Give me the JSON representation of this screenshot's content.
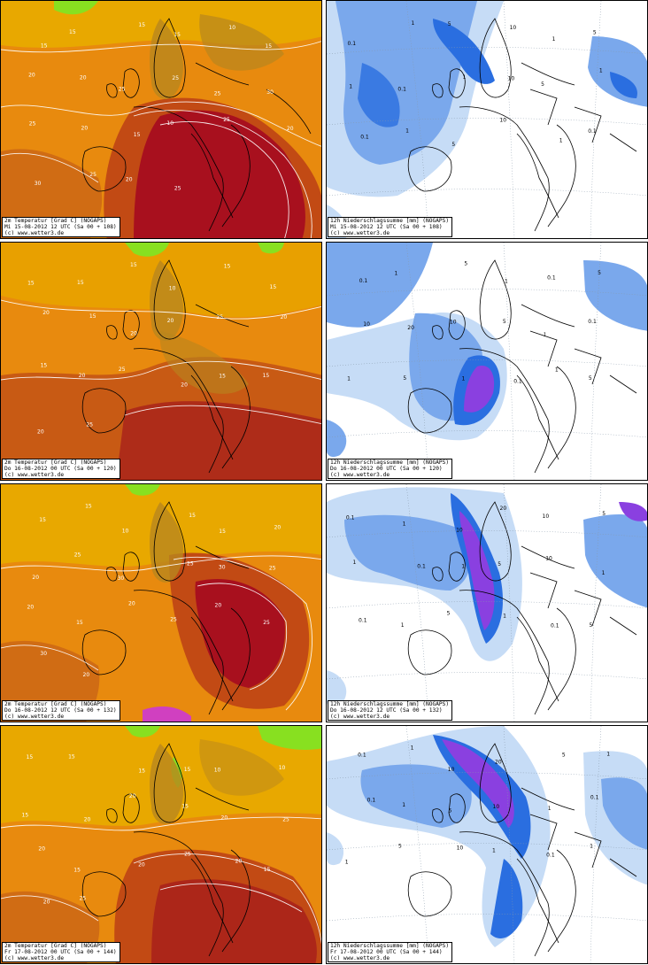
{
  "panels": [
    {
      "row": 0,
      "col": 0,
      "type": "temperature",
      "caption": [
        "2m Temperatur [Grad C] (NOGAPS)",
        "Mi 15-08-2012 12  UTC (Sa 00 + 108)",
        "(c) www.wetter3.de"
      ],
      "contour_labels": [
        "15",
        "15",
        "15",
        "15",
        "10",
        "15",
        "20",
        "20",
        "25",
        "25",
        "25",
        "30",
        "25",
        "20",
        "15",
        "10",
        "25",
        "20",
        "30",
        "25",
        "20",
        "25"
      ]
    },
    {
      "row": 0,
      "col": 1,
      "type": "precipitation",
      "caption": [
        "12h Niederschlagssumme [mm] (NOGAPS)",
        "Mi 15-08-2012 12  UTC (Sa 00 + 108)",
        "(c) www.wetter3.de"
      ],
      "contour_labels": [
        "0.1",
        "1",
        "5",
        "10",
        "1",
        "5",
        "1",
        "0.1",
        "1",
        "10",
        "5",
        "1",
        "0.1",
        "1",
        "5",
        "10",
        "1",
        "0.1"
      ]
    },
    {
      "row": 1,
      "col": 0,
      "type": "temperature",
      "caption": [
        "2m Temperatur [Grad C] (NOGAPS)",
        "Do 16-08-2012 00  UTC (Sa 00 + 120)",
        "(c) www.wetter3.de"
      ],
      "contour_labels": [
        "15",
        "15",
        "15",
        "10",
        "15",
        "15",
        "20",
        "15",
        "20",
        "20",
        "25",
        "20",
        "15",
        "20",
        "25",
        "20",
        "15",
        "15",
        "20",
        "25"
      ]
    },
    {
      "row": 1,
      "col": 1,
      "type": "precipitation",
      "caption": [
        "12h Niederschlagssumme [mm] (NOGAPS)",
        "Do 16-08-2012 00  UTC (Sa 00 + 120)",
        "(c) www.wetter3.de"
      ],
      "contour_labels": [
        "0.1",
        "1",
        "5",
        "1",
        "0.1",
        "5",
        "10",
        "20",
        "10",
        "5",
        "1",
        "0.1",
        "1",
        "5",
        "1",
        "0.1",
        "1",
        "5"
      ]
    },
    {
      "row": 2,
      "col": 0,
      "type": "temperature",
      "caption": [
        "2m Temperatur [Grad C] (NOGAPS)",
        "Do 16-08-2012 12  UTC (Sa 00 + 132)",
        "(c) www.wetter3.de"
      ],
      "contour_labels": [
        "15",
        "15",
        "10",
        "15",
        "15",
        "20",
        "20",
        "25",
        "30",
        "25",
        "30",
        "25",
        "20",
        "15",
        "20",
        "25",
        "20",
        "25",
        "30",
        "20"
      ]
    },
    {
      "row": 2,
      "col": 1,
      "type": "precipitation",
      "caption": [
        "12h Niederschlagssumme [mm] (NOGAPS)",
        "Do 16-08-2012 12  UTC (Sa 00 + 132)",
        "(c) www.wetter3.de"
      ],
      "contour_labels": [
        "0.1",
        "1",
        "10",
        "20",
        "10",
        "5",
        "1",
        "0.1",
        "1",
        "5",
        "10",
        "1",
        "0.1",
        "1",
        "5",
        "1",
        "0.1",
        "5"
      ]
    },
    {
      "row": 3,
      "col": 0,
      "type": "temperature",
      "caption": [
        "2m Temperatur [Grad C] (NOGAPS)",
        "Fr 17-08-2012 00  UTC (Sa 00 + 144)",
        "(c) www.wetter3.de"
      ],
      "contour_labels": [
        "15",
        "15",
        "15",
        "15",
        "10",
        "10",
        "15",
        "20",
        "20",
        "15",
        "20",
        "25",
        "20",
        "15",
        "20",
        "25",
        "20",
        "15",
        "20",
        "25"
      ]
    },
    {
      "row": 3,
      "col": 1,
      "type": "precipitation",
      "caption": [
        "12h Niederschlagssumme [mm] (NOGAPS)",
        "Fr 17-08-2012 00  UTC (Sa 00 + 144)",
        "(c) www.wetter3.de"
      ],
      "contour_labels": [
        "0.1",
        "1",
        "10",
        "20",
        "5",
        "1",
        "0.1",
        "1",
        "5",
        "10",
        "1",
        "0.1",
        "1",
        "5",
        "10",
        "1",
        "0.1",
        "1"
      ]
    }
  ],
  "colors": {
    "temp_cool": "#e8b400",
    "temp_mid": "#e88a0e",
    "temp_warm": "#c85a14",
    "temp_hot": "#a8101e",
    "temp_extreme": "#d040c0",
    "temp_cold": "#88e020",
    "temp_land_shade": "#b8861e",
    "precip_light": "#c6dcf6",
    "precip_mid": "#7aa8ec",
    "precip_heavy": "#2a6ee0",
    "precip_extreme": "#8a40e0",
    "coast": "#000000"
  }
}
